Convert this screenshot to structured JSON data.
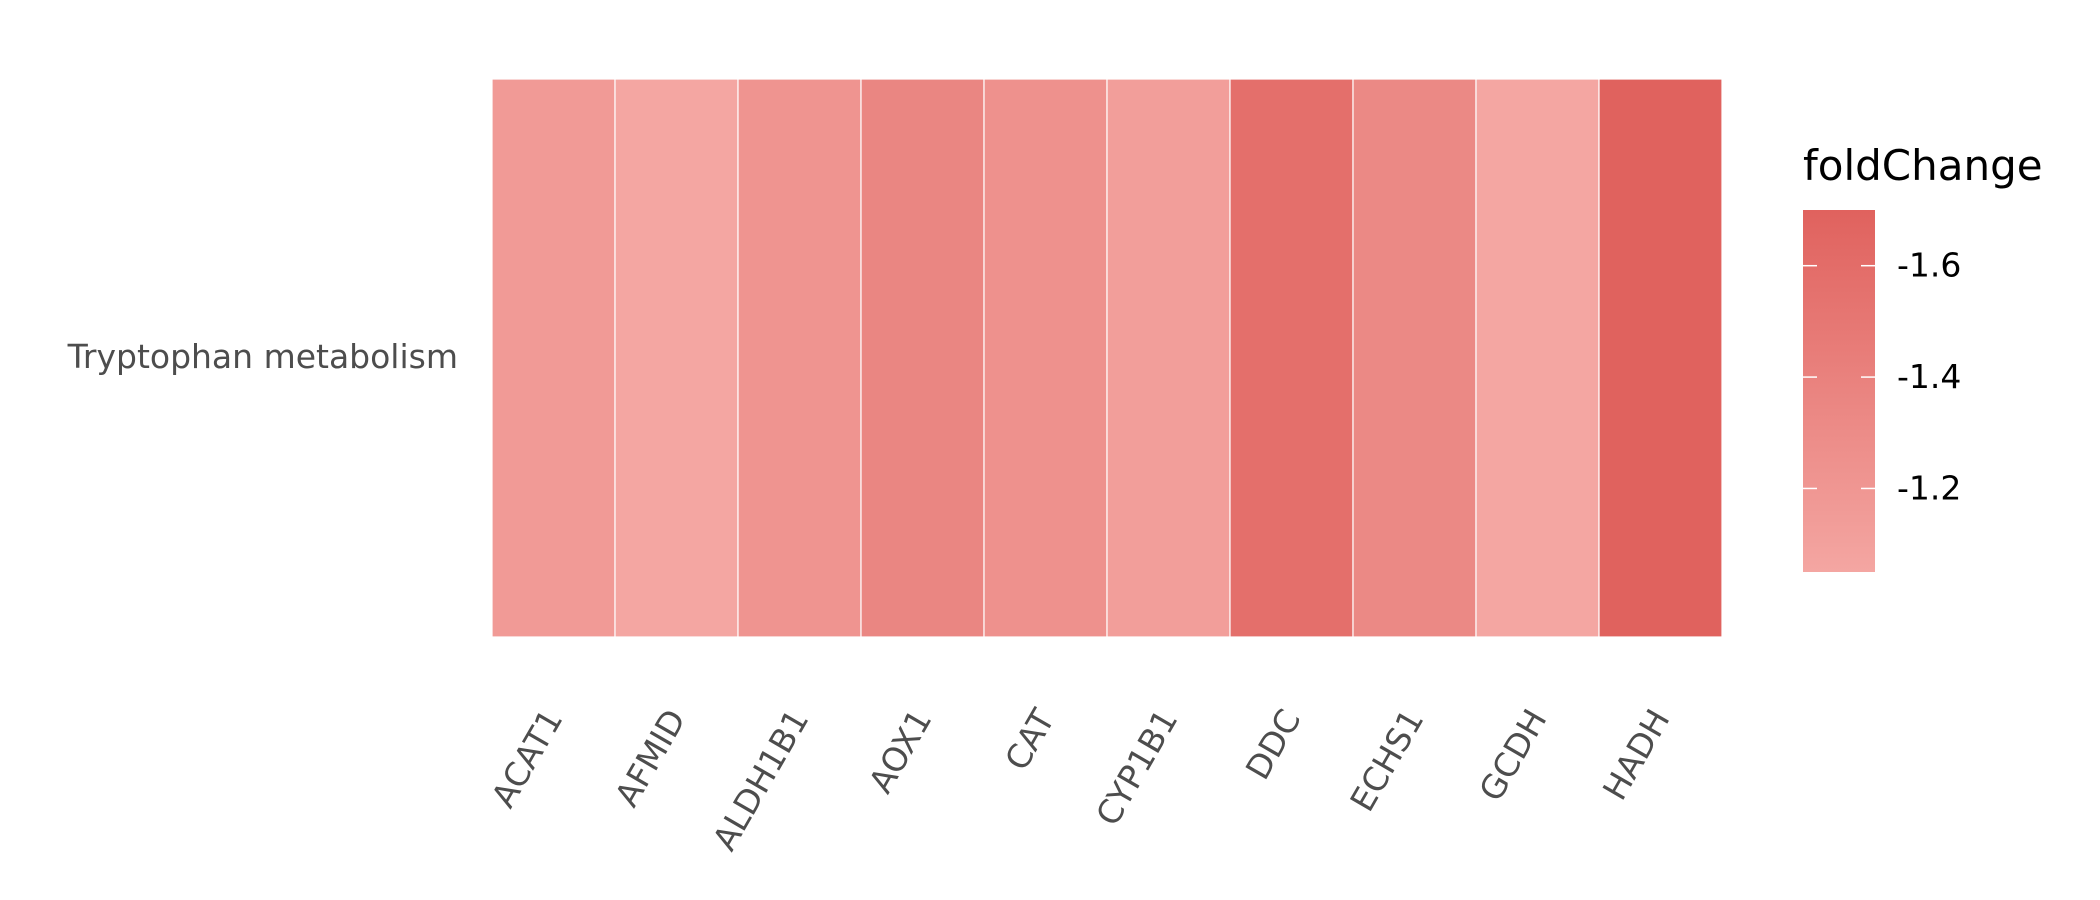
{
  "chart_data": {
    "type": "heatmap",
    "title": "",
    "xlabel": "",
    "ylabel": "",
    "y_categories": [
      "Tryptophan metabolism"
    ],
    "x_categories": [
      "ACAT1",
      "AFMID",
      "ALDH1B1",
      "AOX1",
      "CAT",
      "CYP1B1",
      "DDC",
      "ECHS1",
      "GCDH",
      "HADH"
    ],
    "values": [
      [
        -1.16,
        -1.05,
        -1.22,
        -1.36,
        -1.25,
        -1.13,
        -1.58,
        -1.33,
        -1.05,
        -1.7
      ]
    ],
    "legend": {
      "title": "foldChange",
      "position": "right",
      "ticks": [
        -1.6,
        -1.4,
        -1.2
      ],
      "tick_labels": [
        "-1.6",
        "-1.4",
        "-1.2"
      ],
      "range": [
        -1.7,
        -1.05
      ]
    },
    "colors": {
      "low_color": "#f4a6a2",
      "high_color": "#e0625e",
      "tile_border": "#ffffff"
    },
    "grid": false
  }
}
